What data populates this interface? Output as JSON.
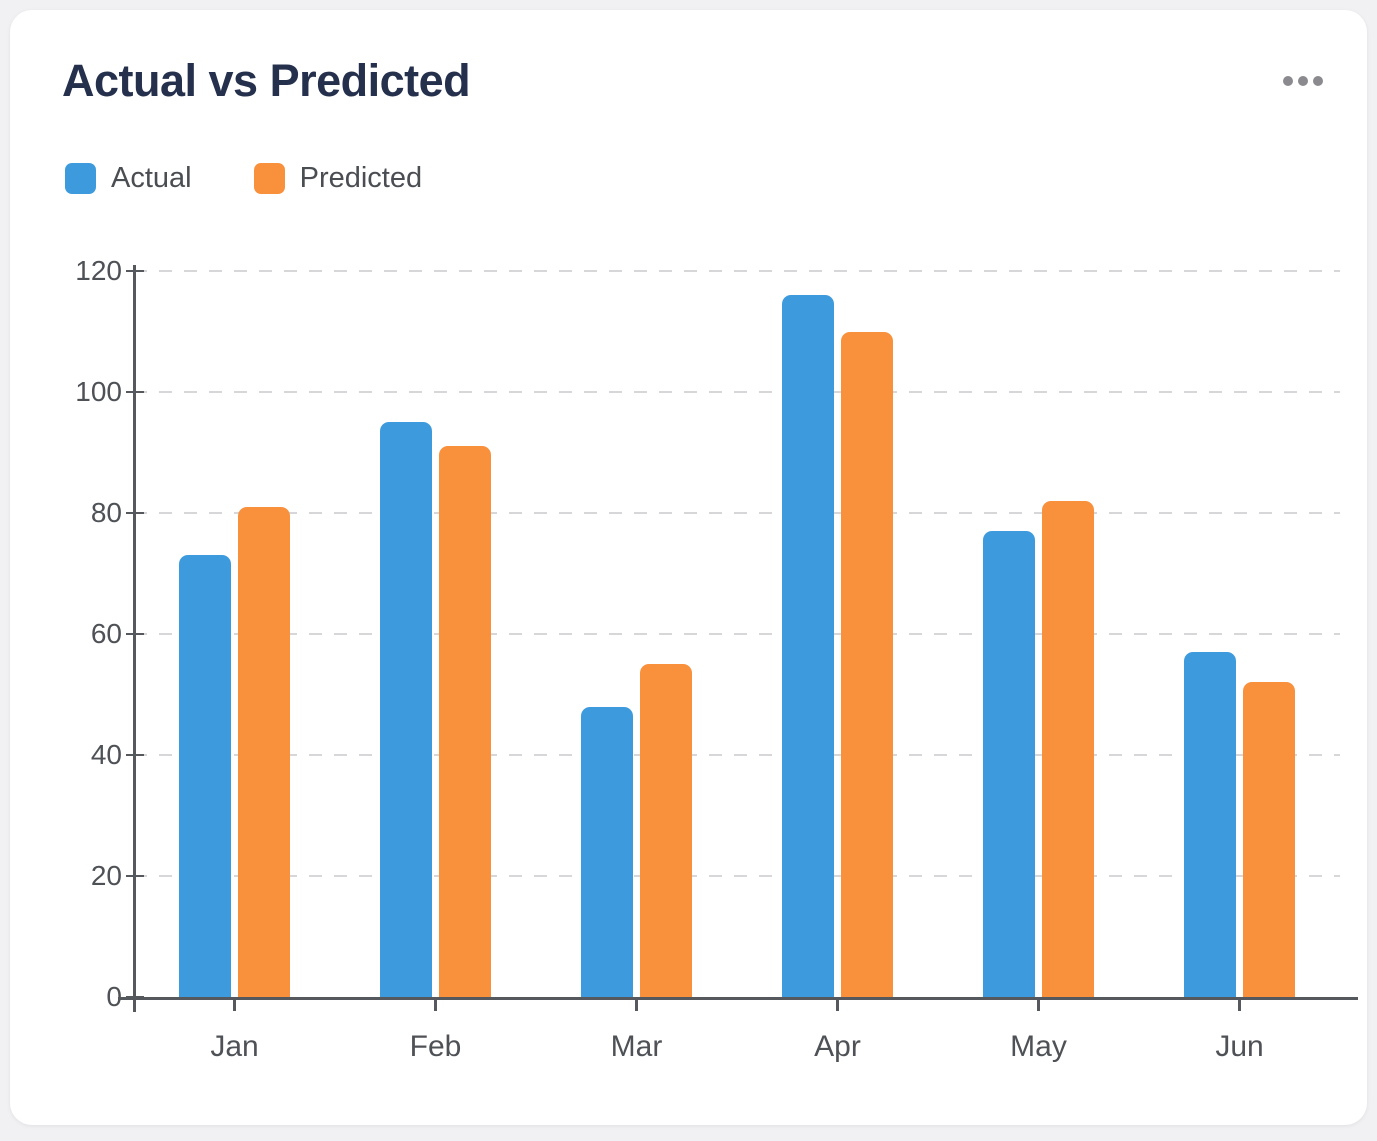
{
  "card": {
    "title": "Actual vs Predicted"
  },
  "menu": {
    "icon": "ellipsis-icon"
  },
  "legend": [
    {
      "label": "Actual",
      "color": "#3D9BDD"
    },
    {
      "label": "Predicted",
      "color": "#F8903C"
    }
  ],
  "chart_data": {
    "type": "bar",
    "title": "Actual vs Predicted",
    "categories": [
      "Jan",
      "Feb",
      "Mar",
      "Apr",
      "May",
      "Jun"
    ],
    "series": [
      {
        "name": "Actual",
        "color": "#3D9BDD",
        "values": [
          73,
          95,
          48,
          116,
          77,
          57
        ]
      },
      {
        "name": "Predicted",
        "color": "#F8903C",
        "values": [
          81,
          91,
          55,
          110,
          82,
          52
        ]
      }
    ],
    "xlabel": "",
    "ylabel": "",
    "ylim": [
      0,
      120
    ],
    "yticks": [
      0,
      20,
      40,
      60,
      80,
      100,
      120
    ],
    "grid": "dashed-horizontal",
    "legend_position": "top-left",
    "bar_corner": "rounded-top"
  },
  "colors": {
    "page_background": "#F1F1F3",
    "card_background": "#FFFFFF",
    "title_text": "#24304C",
    "axis_line": "#55585C",
    "axis_text": "#4E5156",
    "gridline": "#D7D7D9",
    "menu_dots": "#8B8B8F"
  }
}
